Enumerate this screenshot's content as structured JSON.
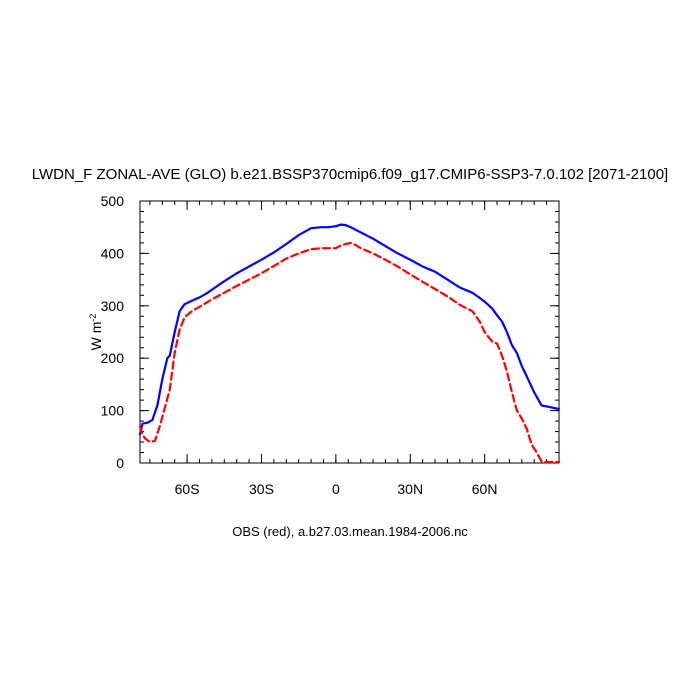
{
  "chart_data": {
    "type": "line",
    "title": "LWDN_F ZONAL-AVE (GLO) b.e21.BSSP370cmip6.f09_g17.CMIP6-SSP3-7.0.102 [2071-2100]",
    "ylabel_main": "W m",
    "ylabel_sup": "-2",
    "footer": "OBS (red), a.b27.03.mean.1984-2006.nc",
    "xlim": [
      -79,
      90
    ],
    "ylim": [
      0,
      500
    ],
    "grid": false,
    "x_ticks": [
      {
        "value": -60,
        "label": "60S"
      },
      {
        "value": -30,
        "label": "30S"
      },
      {
        "value": 0,
        "label": "0"
      },
      {
        "value": 30,
        "label": "30N"
      },
      {
        "value": 60,
        "label": "60N"
      }
    ],
    "y_ticks": [
      {
        "value": 0,
        "label": "0"
      },
      {
        "value": 100,
        "label": "100"
      },
      {
        "value": 200,
        "label": "200"
      },
      {
        "value": 300,
        "label": "300"
      },
      {
        "value": 400,
        "label": "400"
      },
      {
        "value": 500,
        "label": "500"
      }
    ],
    "series": [
      {
        "color": "#0000ff",
        "dash": "solid",
        "x": [
          -79,
          -78,
          -76,
          -74,
          -72,
          -70,
          -68,
          -67,
          -65,
          -63,
          -61,
          -58,
          -55,
          -52,
          -49,
          -45,
          -40,
          -35,
          -30,
          -25,
          -20,
          -15,
          -10,
          -6,
          -3,
          0,
          2,
          4,
          6,
          8,
          10,
          15,
          20,
          25,
          30,
          35,
          40,
          45,
          50,
          55,
          58,
          60,
          63,
          65,
          67,
          69,
          71,
          73,
          75,
          77,
          80,
          83,
          86,
          88,
          90
        ],
        "y": [
          55,
          75,
          77,
          82,
          110,
          160,
          200,
          205,
          250,
          290,
          303,
          310,
          316,
          324,
          334,
          347,
          362,
          375,
          388,
          402,
          418,
          435,
          448,
          450,
          450,
          452,
          455,
          454,
          450,
          445,
          440,
          428,
          414,
          400,
          388,
          375,
          365,
          350,
          335,
          325,
          315,
          308,
          295,
          282,
          270,
          250,
          225,
          210,
          185,
          165,
          135,
          110,
          107,
          105,
          103
        ]
      },
      {
        "color": "#ff0000",
        "dash": "dashed",
        "x": [
          -79,
          -78,
          -77,
          -75,
          -73,
          -71,
          -69,
          -67,
          -65,
          -63,
          -61,
          -58,
          -55,
          -50,
          -45,
          -40,
          -35,
          -30,
          -25,
          -20,
          -15,
          -10,
          -6,
          -3,
          0,
          2,
          4,
          6,
          8,
          10,
          15,
          20,
          25,
          30,
          35,
          40,
          45,
          50,
          55,
          58,
          60,
          63,
          65,
          67,
          69,
          71,
          73,
          75,
          77,
          79,
          81,
          83,
          85,
          87,
          90
        ],
        "y": [
          70,
          55,
          47,
          40,
          42,
          70,
          105,
          140,
          210,
          255,
          278,
          290,
          298,
          312,
          325,
          338,
          350,
          362,
          376,
          390,
          400,
          408,
          410,
          410,
          410,
          415,
          418,
          420,
          416,
          410,
          400,
          388,
          375,
          360,
          346,
          332,
          318,
          302,
          290,
          270,
          250,
          232,
          228,
          205,
          175,
          135,
          100,
          85,
          65,
          35,
          20,
          3,
          2,
          2,
          2
        ]
      }
    ]
  }
}
